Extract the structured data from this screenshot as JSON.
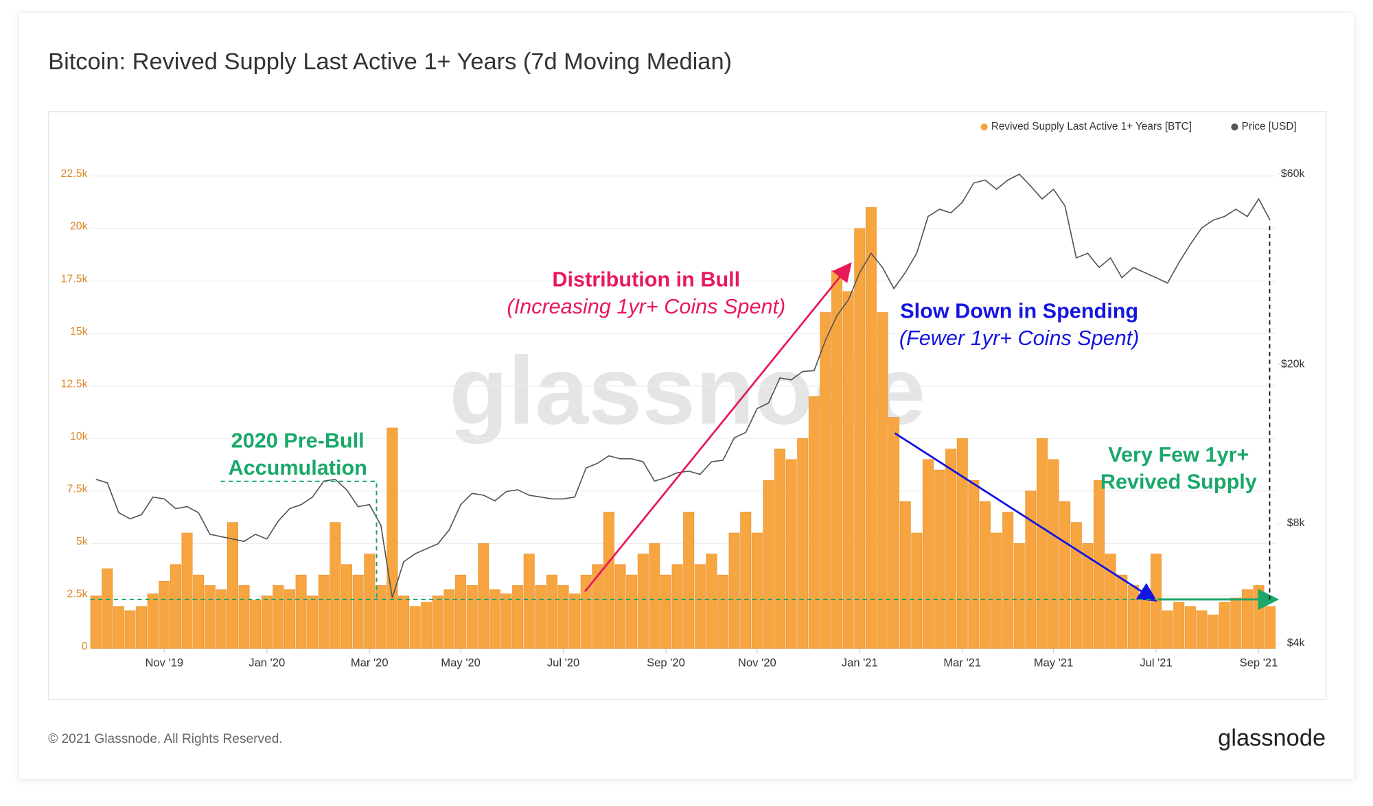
{
  "chart_data": {
    "type": "bar",
    "title": "Bitcoin: Revived Supply Last Active 1+ Years (7d Moving Median)",
    "categories": [
      null,
      null,
      null,
      null,
      null,
      null,
      "Nov '19",
      null,
      null,
      null,
      null,
      null,
      null,
      null,
      null,
      "Jan '20",
      null,
      null,
      null,
      null,
      null,
      null,
      null,
      null,
      "Mar '20",
      null,
      null,
      null,
      null,
      null,
      null,
      null,
      "May '20",
      null,
      null,
      null,
      null,
      null,
      null,
      null,
      null,
      "Jul '20",
      null,
      null,
      null,
      null,
      null,
      null,
      null,
      null,
      "Sep '20",
      null,
      null,
      null,
      null,
      null,
      null,
      null,
      "Nov '20",
      null,
      null,
      null,
      null,
      null,
      null,
      null,
      null,
      "Jan '21",
      null,
      null,
      null,
      null,
      null,
      null,
      null,
      null,
      "Mar '21",
      null,
      null,
      null,
      null,
      null,
      null,
      null,
      "May '21",
      null,
      null,
      null,
      null,
      null,
      null,
      null,
      null,
      "Jul '21",
      null,
      null,
      null,
      null,
      null,
      null,
      null,
      null,
      "Sep '21",
      null
    ],
    "series": [
      {
        "name": "Revived Supply Last Active 1+ Years [BTC]",
        "color": "#f7a541",
        "values": [
          2500,
          3800,
          2000,
          1800,
          2000,
          2600,
          3200,
          4000,
          5500,
          3500,
          3000,
          2800,
          6000,
          3000,
          2300,
          2500,
          3000,
          2800,
          3500,
          2500,
          3500,
          6000,
          4000,
          3500,
          4500,
          3000,
          10500,
          2500,
          2000,
          2200,
          2500,
          2800,
          3500,
          3000,
          5000,
          2800,
          2600,
          3000,
          4500,
          3000,
          3500,
          3000,
          2600,
          3500,
          4000,
          6500,
          4000,
          3500,
          4500,
          5000,
          3500,
          4000,
          6500,
          4000,
          4500,
          3500,
          5500,
          6500,
          5500,
          8000,
          9500,
          9000,
          10000,
          12000,
          16000,
          18000,
          17000,
          20000,
          21000,
          16000,
          11000,
          7000,
          5500,
          9000,
          8500,
          9500,
          10000,
          8000,
          7000,
          5500,
          6500,
          5000,
          7500,
          10000,
          9000,
          7000,
          6000,
          5000,
          8000,
          4500,
          3500,
          3000,
          2500,
          4500,
          1800,
          2200,
          2000,
          1800,
          1600,
          2200,
          2400,
          2800,
          3000,
          2000
        ]
      },
      {
        "name": "Price [USD]",
        "color": "#555555",
        "type": "line",
        "axis": "y2",
        "values": [
          10300,
          10100,
          8500,
          8200,
          8400,
          9300,
          9200,
          8700,
          8800,
          8500,
          7500,
          7400,
          7300,
          7200,
          7500,
          7300,
          8100,
          8700,
          8900,
          9300,
          10200,
          10300,
          9700,
          8800,
          8900,
          7900,
          5200,
          6400,
          6700,
          6900,
          7100,
          7700,
          8900,
          9500,
          9400,
          9100,
          9600,
          9700,
          9400,
          9300,
          9200,
          9200,
          9300,
          11000,
          11300,
          11800,
          11600,
          11600,
          11400,
          10200,
          10400,
          10700,
          10800,
          10600,
          11400,
          11500,
          13100,
          13500,
          15500,
          16000,
          18500,
          18300,
          19200,
          19300,
          23000,
          26500,
          29000,
          34000,
          38000,
          35000,
          31000,
          34000,
          38000,
          47000,
          49000,
          48000,
          51000,
          57000,
          58000,
          55000,
          58000,
          60000,
          56000,
          52000,
          55000,
          50000,
          37000,
          38000,
          35000,
          37000,
          33000,
          35000,
          34000,
          33000,
          32000,
          36000,
          40000,
          44000,
          46000,
          47000,
          49000,
          47000,
          52000,
          46000
        ]
      }
    ],
    "ylim": [
      0,
      25000
    ],
    "yticks": [
      0,
      {
        "value": 2500,
        "label": "2.5k"
      },
      {
        "value": 5000,
        "label": "5k"
      },
      {
        "value": 7500,
        "label": "7.5k"
      },
      {
        "value": 10000,
        "label": "10k"
      },
      {
        "value": 12500,
        "label": "12.5k"
      },
      {
        "value": 15000,
        "label": "15k"
      },
      {
        "value": 17500,
        "label": "17.5k"
      },
      {
        "value": 20000,
        "label": "20k"
      },
      {
        "value": 22500,
        "label": "22.5k"
      }
    ],
    "y2lim": [
      3880,
      80400
    ],
    "y2ticks": [
      {
        "value": 4000,
        "label": "$4k"
      },
      {
        "value": 8000,
        "label": "$8k"
      },
      {
        "value": 20000,
        "label": "$20k"
      },
      {
        "value": 60000,
        "label": "$60k"
      }
    ],
    "y2_log": true,
    "grid": true,
    "legend": "top-right",
    "annotations": [
      {
        "lines": [
          "Distribution in Bull",
          "(Increasing 1yr+ Coins Spent)"
        ],
        "color": "#e8195b"
      },
      {
        "lines": [
          "Slow Down in Spending",
          "(Fewer 1yr+ Coins Spent)"
        ],
        "color": "#1414e0"
      },
      {
        "lines": [
          "2020 Pre-Bull",
          "Accumulation"
        ],
        "color": "#19a86a"
      },
      {
        "lines": [
          "Very Few 1yr+",
          "Revived Supply"
        ],
        "color": "#19a86a"
      }
    ],
    "watermark": "glassnode",
    "footer": "© 2021 Glassnode. All Rights Reserved.",
    "brand": "glassnode"
  }
}
